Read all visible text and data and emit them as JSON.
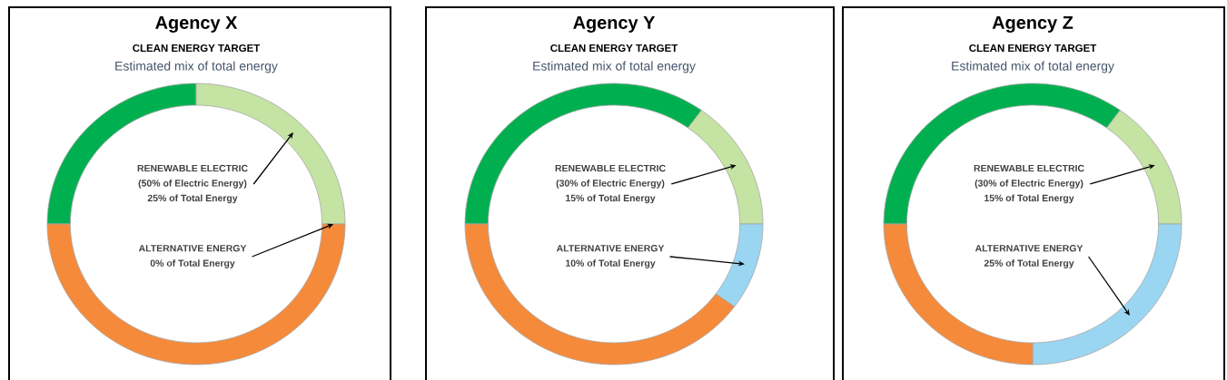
{
  "chart_data": [
    {
      "type": "donut",
      "title": "Agency X",
      "subtitle": "CLEAN ENERGY TARGET",
      "categories": [
        null,
        null,
        null,
        null
      ],
      "values": [
        25,
        25,
        0,
        50
      ],
      "colors": [
        "#00b050",
        "#c5e3a3",
        "#9ad6f2",
        "#f58a3a"
      ],
      "annotations": [
        "Estimated mix of total energy",
        "RENEWABLE ELECTRIC",
        "(50% of Electric Energy)",
        "25% of Total Energy",
        "ALTERNATIVE ENERGY",
        "0% of Total Energy"
      ]
    },
    {
      "type": "donut",
      "title": "Agency Y",
      "subtitle": "CLEAN ENERGY TARGET",
      "categories": [
        null,
        null,
        null,
        null
      ],
      "values": [
        35,
        15,
        10,
        40
      ],
      "colors": [
        "#00b050",
        "#c5e3a3",
        "#9ad6f2",
        "#f58a3a"
      ],
      "annotations": [
        "Estimated mix of total energy",
        "RENEWABLE ELECTRIC",
        "(30% of Electric Energy)",
        "15% of Total Energy",
        "ALTERNATIVE ENERGY",
        "10% of Total Energy"
      ]
    },
    {
      "type": "donut",
      "title": "Agency Z",
      "subtitle": "CLEAN ENERGY TARGET",
      "categories": [
        null,
        null,
        null,
        null
      ],
      "values": [
        35,
        15,
        25,
        25
      ],
      "colors": [
        "#00b050",
        "#c5e3a3",
        "#9ad6f2",
        "#f58a3a"
      ],
      "annotations": [
        "Estimated mix of total energy",
        "RENEWABLE ELECTRIC",
        "(30% of Electric Energy)",
        "15% of Total Energy",
        "ALTERNATIVE ENERGY",
        "25% of Total Energy"
      ]
    }
  ]
}
